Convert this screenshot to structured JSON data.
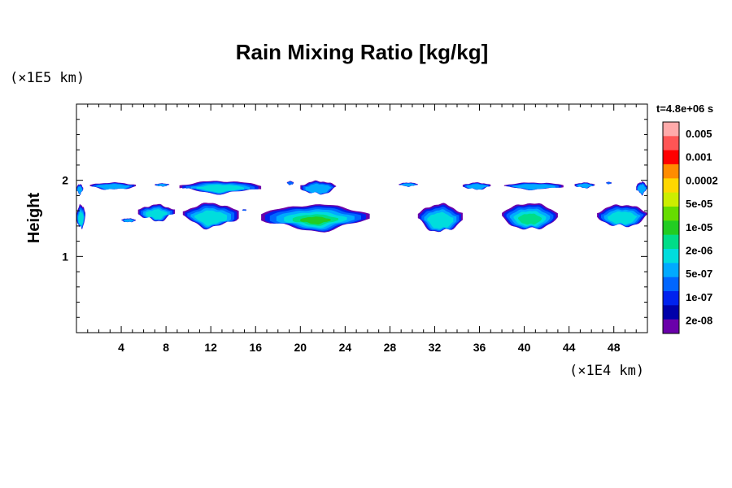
{
  "chart_data": {
    "type": "heatmap",
    "title": "Rain Mixing Ratio [kg/kg]",
    "ylabel": "Height",
    "x_unit_label": "(×1E4 km)",
    "y_unit_label": "(×1E5 km)",
    "time_label": "t=4.8e+06 s",
    "xlim": [
      0,
      51
    ],
    "ylim": [
      0,
      3
    ],
    "x_ticks": [
      4,
      8,
      12,
      16,
      20,
      24,
      28,
      32,
      36,
      40,
      44,
      48
    ],
    "x_tick_labels": [
      "4",
      "8",
      "12",
      "16",
      "20",
      "24",
      "28",
      "32",
      "36",
      "40",
      "44",
      "48"
    ],
    "x_minor_step": 1,
    "y_ticks": [
      1,
      2
    ],
    "y_tick_labels": [
      "1",
      "2"
    ],
    "y_minor_step": 0.2,
    "colorbar": {
      "levels": [
        "0.005",
        "0.001",
        "0.0002",
        "5e-05",
        "1e-05",
        "2e-06",
        "5e-07",
        "1e-07",
        "2e-08"
      ],
      "colors": [
        "#ffaaaa",
        "#ff5555",
        "#ff0000",
        "#ff8c00",
        "#ffd700",
        "#ccee00",
        "#66dd00",
        "#22cc22",
        "#00dd88",
        "#00dddd",
        "#00aaff",
        "#0066ff",
        "#0022ee",
        "#0000aa",
        "#6a00aa"
      ]
    },
    "cells": [
      {
        "x": [
          0,
          0.8
        ],
        "y": [
          1.37,
          1.68
        ],
        "intensity": 0.55
      },
      {
        "x": [
          0,
          0.6
        ],
        "y": [
          1.82,
          1.95
        ],
        "intensity": 0.35
      },
      {
        "x": [
          1.2,
          5.3
        ],
        "y": [
          1.88,
          1.97
        ],
        "intensity": 0.35
      },
      {
        "x": [
          7.0,
          8.3
        ],
        "y": [
          1.92,
          1.96
        ],
        "intensity": 0.15
      },
      {
        "x": [
          9.2,
          16.5
        ],
        "y": [
          1.83,
          1.99
        ],
        "intensity": 0.5
      },
      {
        "x": [
          4.0,
          5.3
        ],
        "y": [
          1.45,
          1.5
        ],
        "intensity": 0.25
      },
      {
        "x": [
          5.5,
          8.8
        ],
        "y": [
          1.47,
          1.68
        ],
        "intensity": 0.45
      },
      {
        "x": [
          9.5,
          14.5
        ],
        "y": [
          1.38,
          1.7
        ],
        "intensity": 0.55
      },
      {
        "x": [
          14.8,
          15.2
        ],
        "y": [
          1.6,
          1.62
        ],
        "intensity": 0.1
      },
      {
        "x": [
          16.5,
          26.2
        ],
        "y": [
          1.34,
          1.68
        ],
        "intensity": 0.9
      },
      {
        "x": [
          18.8,
          19.4
        ],
        "y": [
          1.94,
          1.99
        ],
        "intensity": 0.1
      },
      {
        "x": [
          20.0,
          23.2
        ],
        "y": [
          1.82,
          1.99
        ],
        "intensity": 0.35
      },
      {
        "x": [
          28.8,
          30.5
        ],
        "y": [
          1.92,
          1.97
        ],
        "intensity": 0.15
      },
      {
        "x": [
          30.5,
          34.5
        ],
        "y": [
          1.32,
          1.69
        ],
        "intensity": 0.6
      },
      {
        "x": [
          34.5,
          37.0
        ],
        "y": [
          1.88,
          1.97
        ],
        "intensity": 0.3
      },
      {
        "x": [
          38.2,
          43.5
        ],
        "y": [
          1.88,
          1.97
        ],
        "intensity": 0.35
      },
      {
        "x": [
          38.0,
          43.0
        ],
        "y": [
          1.35,
          1.7
        ],
        "intensity": 0.7
      },
      {
        "x": [
          44.5,
          46.3
        ],
        "y": [
          1.9,
          1.97
        ],
        "intensity": 0.25
      },
      {
        "x": [
          47.3,
          47.8
        ],
        "y": [
          1.95,
          1.98
        ],
        "intensity": 0.1
      },
      {
        "x": [
          46.5,
          51
        ],
        "y": [
          1.39,
          1.68
        ],
        "intensity": 0.6
      },
      {
        "x": [
          50,
          51
        ],
        "y": [
          1.82,
          1.98
        ],
        "intensity": 0.35
      }
    ]
  }
}
